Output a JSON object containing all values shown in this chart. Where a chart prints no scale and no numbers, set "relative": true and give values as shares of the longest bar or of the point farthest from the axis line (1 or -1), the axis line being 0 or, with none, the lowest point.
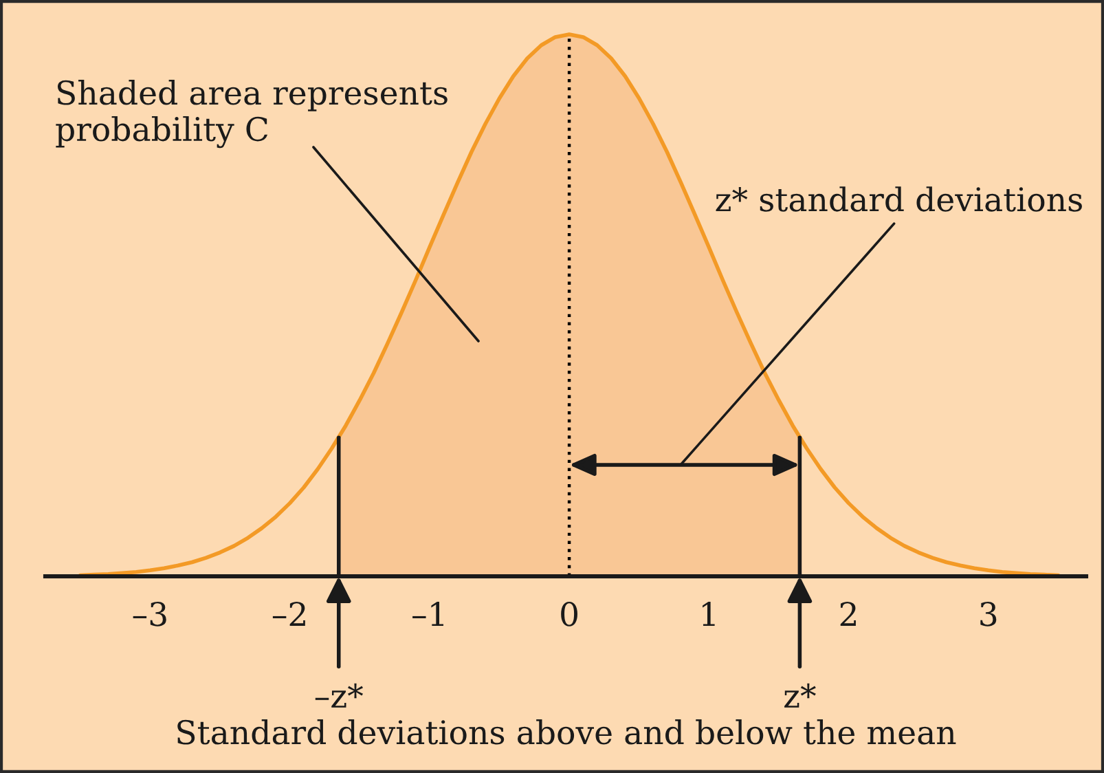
{
  "chart_data": {
    "type": "line",
    "relative": true,
    "xlabel": "Standard deviations above and below the mean",
    "xlim": [
      -3.75,
      3.7
    ],
    "xticks": [
      {
        "value": -3,
        "label": "–3"
      },
      {
        "value": -2,
        "label": "–2"
      },
      {
        "value": -1,
        "label": "–1"
      },
      0,
      1,
      2,
      3
    ],
    "series": [
      {
        "type": "area",
        "color": "#f9c795",
        "x": [
          -1.65,
          -1.6,
          -1.5,
          -1.4,
          -1.3,
          -1.2,
          -1.1,
          -1,
          -0.9,
          -0.8,
          -0.7,
          -0.6,
          -0.5,
          -0.4,
          -0.3,
          -0.2,
          -0.1,
          0,
          0.1,
          0.2,
          0.3,
          0.4,
          0.5,
          0.6,
          0.7,
          0.8,
          0.9,
          1,
          1.1,
          1.2,
          1.3,
          1.4,
          1.5,
          1.6,
          1.65
        ],
        "values": [
          0.256,
          0.278,
          0.325,
          0.375,
          0.43,
          0.487,
          0.546,
          0.607,
          0.667,
          0.726,
          0.783,
          0.835,
          0.882,
          0.923,
          0.956,
          0.98,
          0.995,
          1,
          0.995,
          0.98,
          0.956,
          0.923,
          0.882,
          0.835,
          0.783,
          0.726,
          0.667,
          0.607,
          0.546,
          0.487,
          0.43,
          0.375,
          0.325,
          0.278,
          0.256
        ]
      },
      {
        "color": "#f39a26",
        "x": [
          -3.5,
          -3.4,
          -3.3,
          -3.2,
          -3.1,
          -3,
          -2.9,
          -2.8,
          -2.7,
          -2.6,
          -2.5,
          -2.4,
          -2.3,
          -2.2,
          -2.1,
          -2,
          -1.9,
          -1.8,
          -1.7,
          -1.6,
          -1.5,
          -1.4,
          -1.3,
          -1.2,
          -1.1,
          -1,
          -0.9,
          -0.8,
          -0.7,
          -0.6,
          -0.5,
          -0.4,
          -0.3,
          -0.2,
          -0.1,
          0,
          0.1,
          0.2,
          0.3,
          0.4,
          0.5,
          0.6,
          0.7,
          0.8,
          0.9,
          1,
          1.1,
          1.2,
          1.3,
          1.4,
          1.5,
          1.6,
          1.7,
          1.8,
          1.9,
          2,
          2.1,
          2.2,
          2.3,
          2.4,
          2.5,
          2.6,
          2.7,
          2.8,
          2.9,
          3,
          3.1,
          3.2,
          3.3,
          3.4,
          3.5
        ],
        "values": [
          0.002,
          0.003,
          0.004,
          0.006,
          0.008,
          0.011,
          0.015,
          0.02,
          0.026,
          0.034,
          0.044,
          0.056,
          0.071,
          0.089,
          0.11,
          0.135,
          0.164,
          0.198,
          0.236,
          0.278,
          0.325,
          0.375,
          0.43,
          0.487,
          0.546,
          0.607,
          0.667,
          0.726,
          0.783,
          0.835,
          0.882,
          0.923,
          0.956,
          0.98,
          0.995,
          1,
          0.995,
          0.98,
          0.956,
          0.923,
          0.882,
          0.835,
          0.783,
          0.726,
          0.667,
          0.607,
          0.546,
          0.487,
          0.43,
          0.375,
          0.325,
          0.278,
          0.236,
          0.198,
          0.164,
          0.135,
          0.11,
          0.089,
          0.071,
          0.056,
          0.044,
          0.034,
          0.026,
          0.02,
          0.015,
          0.011,
          0.008,
          0.006,
          0.004,
          0.003,
          0.002
        ]
      },
      {
        "color": "#1a1a1a",
        "x": [
          -1.65,
          -1.65
        ],
        "values": [
          0,
          0.256
        ]
      },
      {
        "color": "#1a1a1a",
        "x": [
          1.65,
          1.65
        ],
        "values": [
          0,
          0.256
        ]
      }
    ],
    "ref_lines": [
      {
        "axis": "x",
        "value": 0,
        "line_style": "dotted",
        "color": "#000000"
      }
    ],
    "annotations": [
      "Shaded area represents\nprobability C",
      "z* standard deviations",
      {
        "text": "–z*",
        "x": -1.65,
        "y": 0
      },
      {
        "text": "z*",
        "x": 1.65,
        "y": 0
      }
    ]
  }
}
